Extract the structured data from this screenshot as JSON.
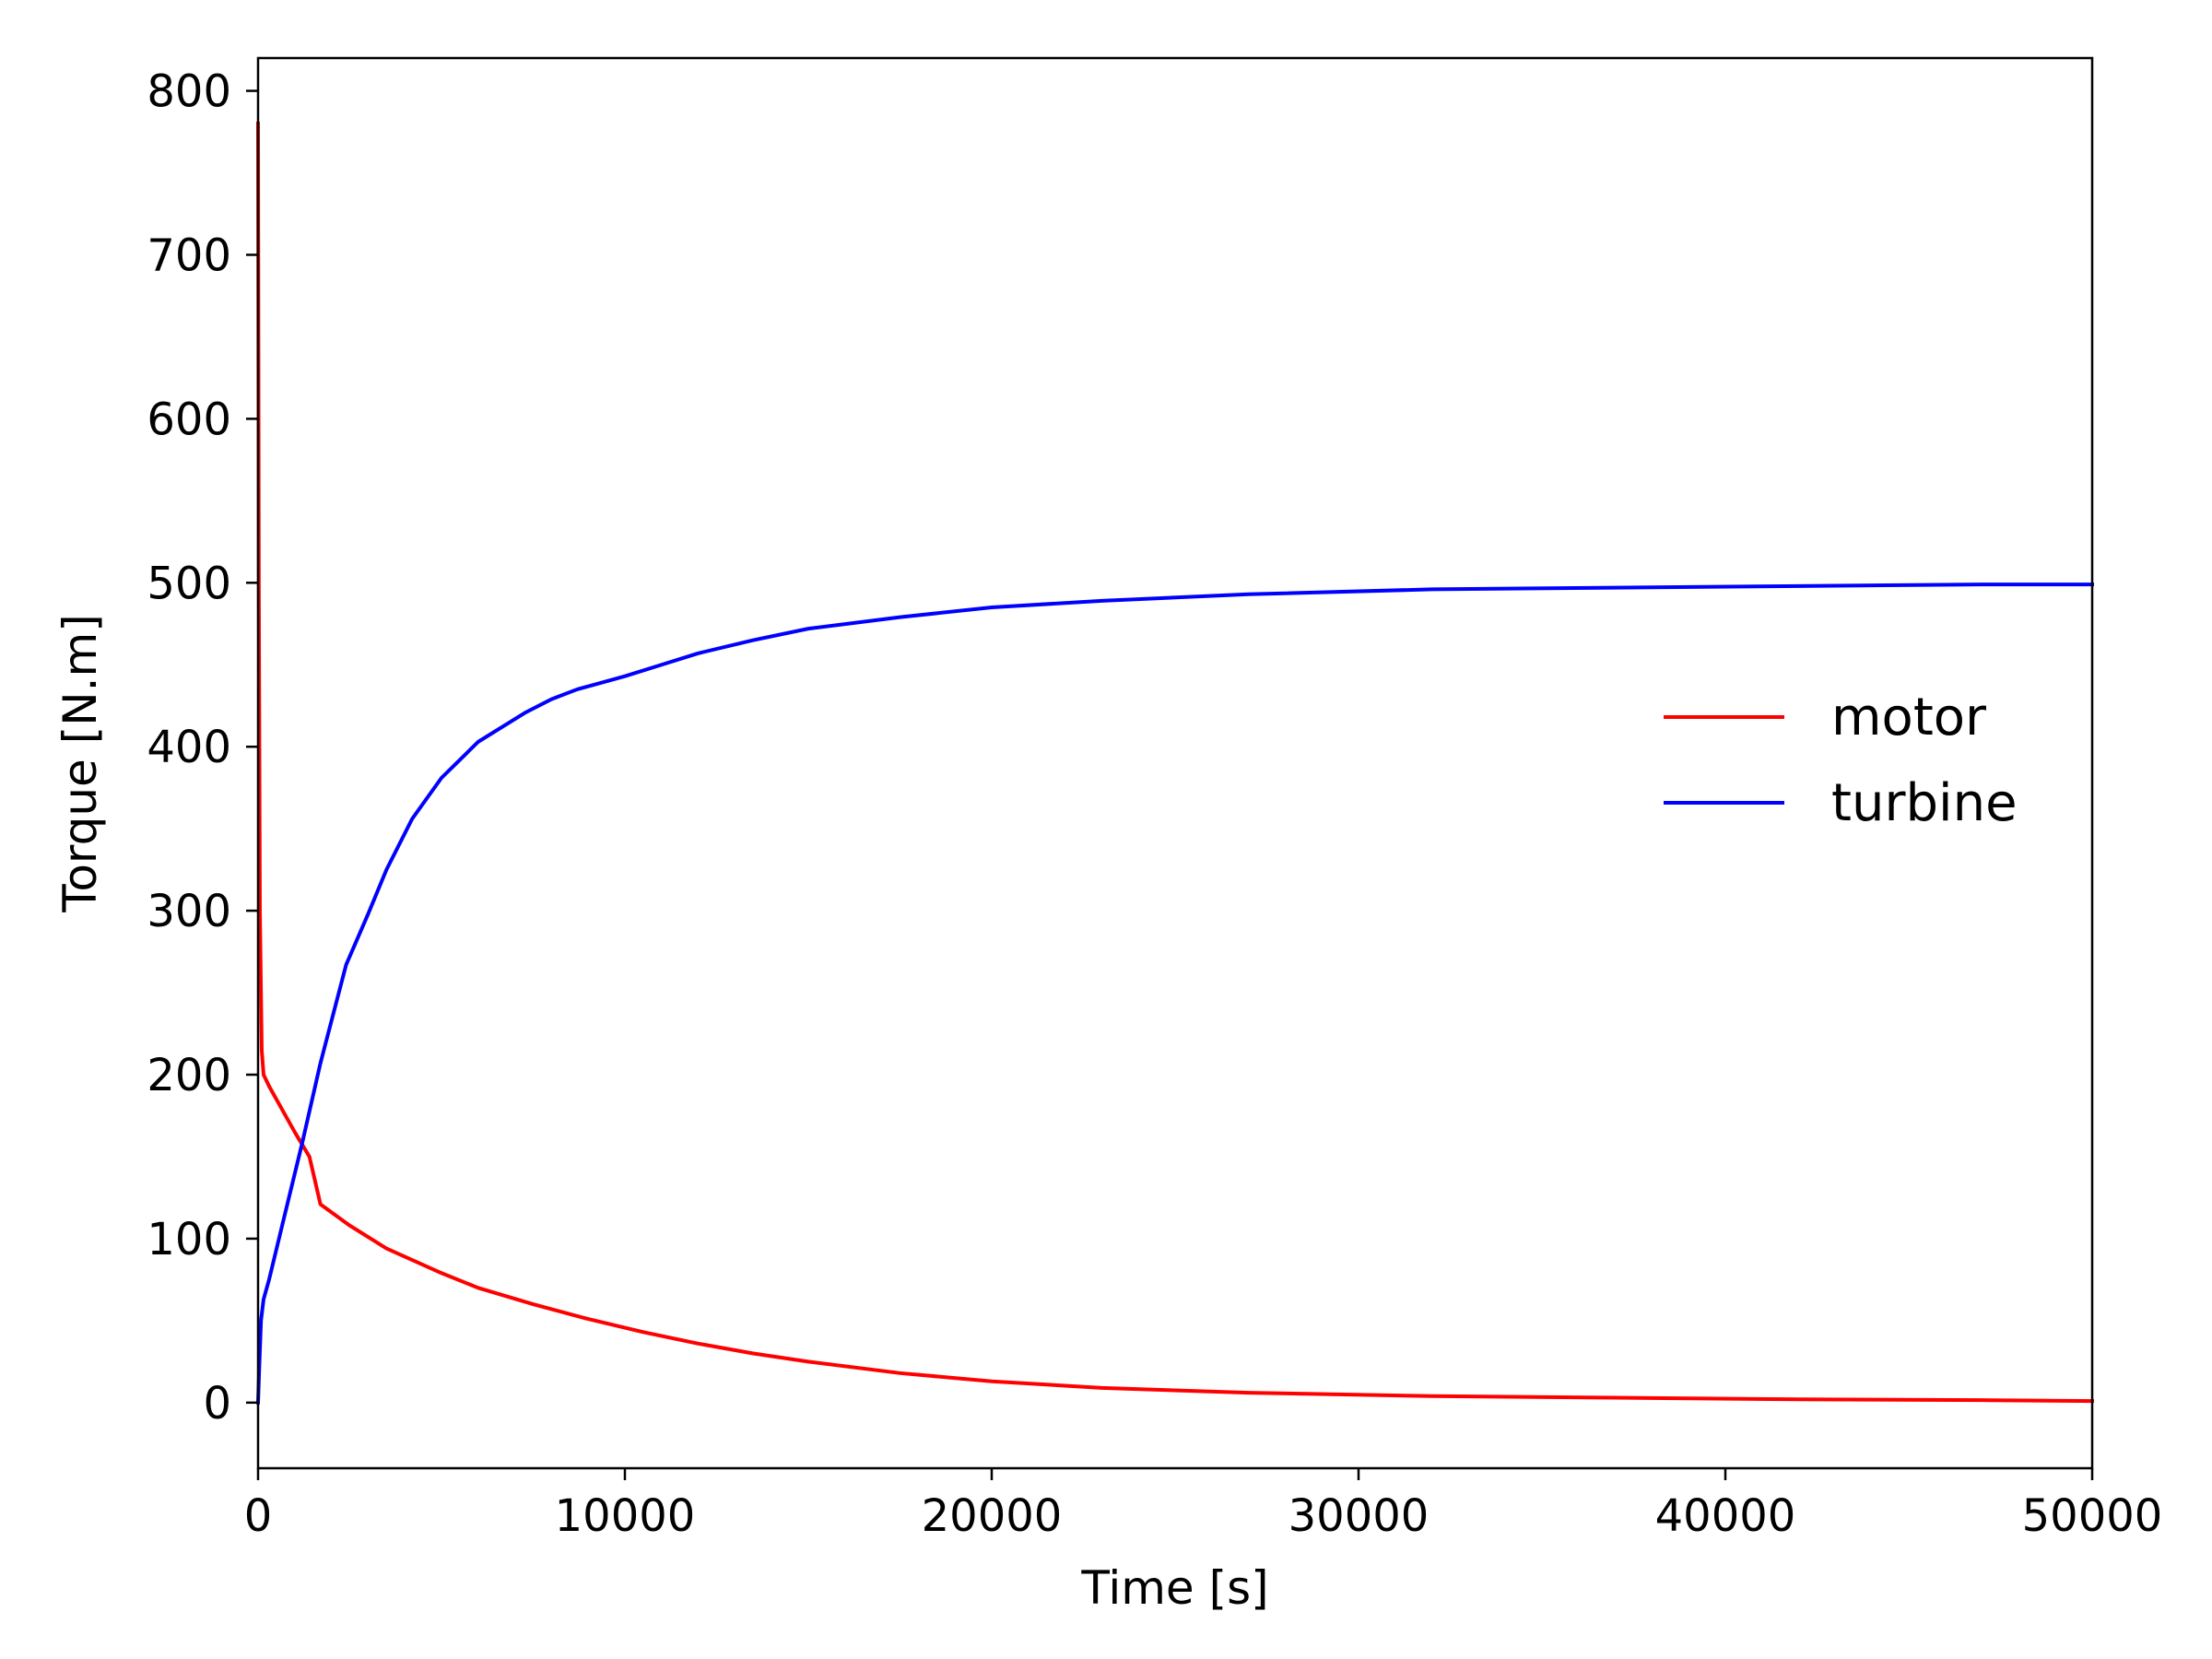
{
  "chart_data": {
    "type": "line",
    "xlabel": "Time [s]",
    "ylabel": "Torque [N.m]",
    "xlim": [
      0,
      50000
    ],
    "ylim": [
      -40,
      820
    ],
    "xticks": [
      0,
      10000,
      20000,
      30000,
      40000,
      50000
    ],
    "xtick_labels": [
      "0",
      "10000",
      "20000",
      "30000",
      "40000",
      "50000"
    ],
    "yticks": [
      0,
      100,
      200,
      300,
      400,
      500,
      600,
      700,
      800
    ],
    "ytick_labels": [
      "0",
      "100",
      "200",
      "300",
      "400",
      "500",
      "600",
      "700",
      "800"
    ],
    "grid": false,
    "legend_position": "center-right",
    "series": [
      {
        "name": "motor",
        "color": "#ff0000",
        "x": [
          0,
          20,
          50,
          100,
          150,
          300,
          1000,
          1400,
          1700,
          2500,
          3500,
          5000,
          6000,
          7500,
          9000,
          10500,
          12000,
          13500,
          15000,
          17500,
          20000,
          23000,
          27000,
          32000,
          37000,
          42000,
          47000,
          50000
        ],
        "y": [
          780,
          500,
          300,
          215,
          200,
          193,
          165,
          150,
          121,
          108,
          94,
          79,
          70,
          60,
          51,
          43,
          36,
          30,
          25,
          18,
          13,
          9,
          6,
          4,
          3,
          2,
          1.5,
          1
        ]
      },
      {
        "name": "turbine",
        "color": "#0000ff",
        "x": [
          0,
          30,
          80,
          150,
          300,
          700,
          1200,
          1700,
          2400,
          3000,
          3500,
          4200,
          5000,
          6000,
          7300,
          8000,
          8700,
          10000,
          11000,
          12000,
          13500,
          15000,
          17500,
          20000,
          23000,
          27000,
          32000,
          37000,
          42000,
          47000,
          50000
        ],
        "y": [
          0,
          20,
          50,
          63,
          75,
          112,
          158,
          207,
          267,
          298,
          325,
          356,
          381,
          403,
          421,
          429,
          435,
          443,
          450,
          457,
          465,
          472,
          479,
          485,
          489,
          493,
          496,
          497,
          498,
          499,
          499
        ]
      }
    ]
  }
}
